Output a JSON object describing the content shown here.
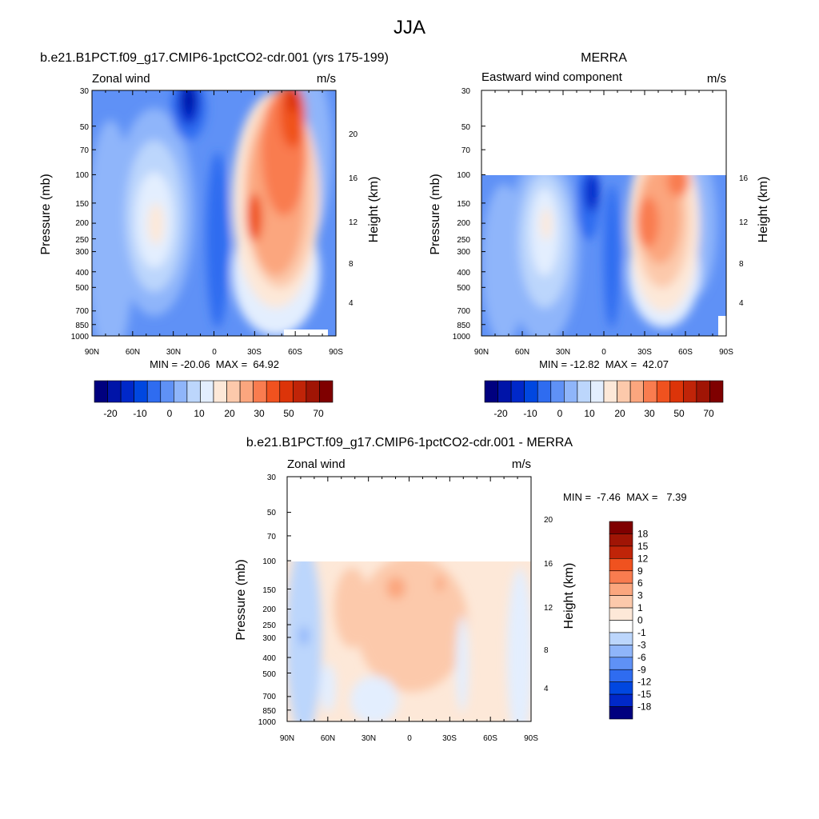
{
  "figure": {
    "title": "JJA",
    "colors": {
      "blue_scale_18": [
        "#00007f",
        "#0014a8",
        "#0028c9",
        "#0047e0",
        "#2f6cf0",
        "#5f91f6",
        "#8fb5fa",
        "#bcd6fc",
        "#e3eefe"
      ],
      "red_scale_9": [
        "#fde8d8",
        "#fcc9ab",
        "#fba67e",
        "#f97c4f",
        "#f0521f",
        "#dc3409",
        "#c02408",
        "#a01505",
        "#7f0000"
      ],
      "zero_white": "#ffffff"
    }
  },
  "chart_data": [
    {
      "type": "heatmap",
      "title": "b.e21.B1PCT.f09_g17.CMIP6-1pctCO2-cdr.001 (yrs 175-199)",
      "subtitle_left": "Zonal wind",
      "subtitle_right": "m/s",
      "ylabel": "Pressure (mb)",
      "ylabel_right": "Height (km)",
      "x_ticks": [
        "90N",
        "60N",
        "30N",
        "0",
        "30S",
        "60S",
        "90S"
      ],
      "y_ticks": [
        "30",
        "50",
        "70",
        "100",
        "150",
        "200",
        "250",
        "300",
        "400",
        "500",
        "700",
        "850",
        "1000"
      ],
      "y_ticks_right": [
        "4",
        "8",
        "12",
        "16",
        "20"
      ],
      "y_scale": "log",
      "ylim": [
        30,
        1000
      ],
      "stats": "MIN = -20.06  MAX =  64.92",
      "colorbar_labels": [
        "-20",
        "-10",
        "0",
        "10",
        "20",
        "30",
        "50",
        "70"
      ],
      "colorbar_orientation": "horizontal"
    },
    {
      "type": "heatmap",
      "title": "MERRA",
      "subtitle_left": "Eastward wind component",
      "subtitle_right": "m/s",
      "ylabel": "Pressure (mb)",
      "ylabel_right": "Height (km)",
      "x_ticks": [
        "90N",
        "60N",
        "30N",
        "0",
        "30S",
        "60S",
        "90S"
      ],
      "y_ticks": [
        "30",
        "50",
        "70",
        "100",
        "150",
        "200",
        "250",
        "300",
        "400",
        "500",
        "700",
        "850",
        "1000"
      ],
      "y_ticks_right": [
        "4",
        "8",
        "12",
        "16"
      ],
      "y_scale": "log",
      "ylim": [
        30,
        1000
      ],
      "data_top_pressure": 100,
      "stats": "MIN = -12.82  MAX =  42.07",
      "colorbar_labels": [
        "-20",
        "-10",
        "0",
        "10",
        "20",
        "30",
        "50",
        "70"
      ],
      "colorbar_orientation": "horizontal"
    },
    {
      "type": "heatmap",
      "title": "b.e21.B1PCT.f09_g17.CMIP6-1pctCO2-cdr.001 - MERRA",
      "subtitle_left": "Zonal wind",
      "subtitle_right": "m/s",
      "ylabel": "Pressure (mb)",
      "ylabel_right": "Height (km)",
      "x_ticks": [
        "90N",
        "60N",
        "30N",
        "0",
        "30S",
        "60S",
        "90S"
      ],
      "y_ticks": [
        "30",
        "50",
        "70",
        "100",
        "150",
        "200",
        "250",
        "300",
        "400",
        "500",
        "700",
        "850",
        "1000"
      ],
      "y_ticks_right": [
        "4",
        "8",
        "12",
        "16",
        "20"
      ],
      "y_scale": "log",
      "ylim": [
        30,
        1000
      ],
      "data_top_pressure": 100,
      "stats": "MIN =  -7.46  MAX =   7.39",
      "colorbar_labels": [
        "18",
        "15",
        "12",
        "9",
        "6",
        "3",
        "1",
        "0",
        "-1",
        "-3",
        "-6",
        "-9",
        "-12",
        "-15",
        "-18"
      ],
      "colorbar_orientation": "vertical"
    }
  ]
}
